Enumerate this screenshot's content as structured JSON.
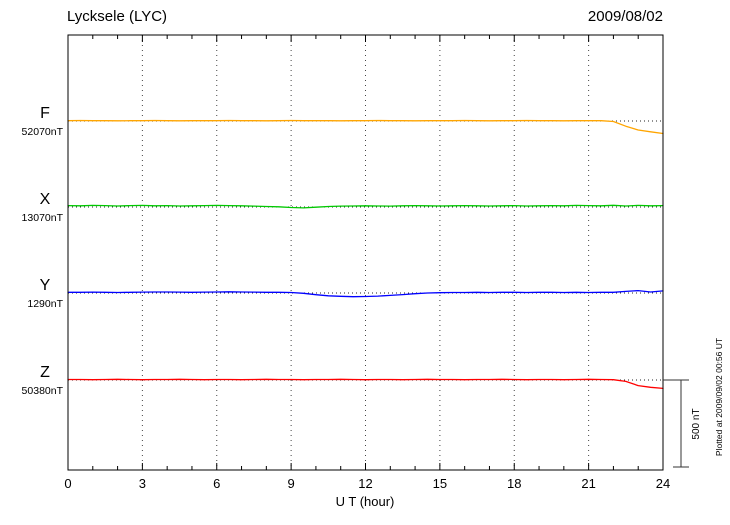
{
  "header": {
    "title": "Lycksele (LYC)",
    "date": "2009/08/02"
  },
  "scale_bar": {
    "label": "500 nT",
    "nT": 500
  },
  "plot_note": "Plotted at 2009/09/02 00:56 UT",
  "chart_data": {
    "type": "line",
    "title": "Lycksele (LYC)",
    "date": "2009/08/02",
    "xlabel": "U T (hour)",
    "x_range": [
      0,
      24
    ],
    "x_ticks": [
      0,
      3,
      6,
      9,
      12,
      15,
      18,
      21,
      24
    ],
    "x_step_hours": 0.5,
    "grid": "dotted vertical gridlines every 3 hours; dotted horizontal baseline for each trace",
    "scale_reference_nT": 500,
    "legend_position": "left margin, one colored label per trace",
    "series": [
      {
        "name": "F",
        "baseline_label": "52070nT",
        "baseline_nT": 52070,
        "color": "#FFA500",
        "offsets_nT": [
          2,
          3,
          2,
          2,
          1,
          2,
          2,
          3,
          2,
          1,
          2,
          2,
          2,
          3,
          2,
          2,
          1,
          2,
          3,
          2,
          2,
          2,
          1,
          2,
          2,
          3,
          2,
          2,
          1,
          2,
          2,
          2,
          3,
          2,
          1,
          2,
          2,
          3,
          2,
          2,
          1,
          2,
          2,
          2,
          -3,
          -30,
          -52,
          -62,
          -72
        ]
      },
      {
        "name": "X",
        "baseline_label": "13070nT",
        "baseline_nT": 13070,
        "color": "#00C800",
        "offsets_nT": [
          8,
          7,
          9,
          8,
          6,
          8,
          9,
          7,
          8,
          6,
          7,
          8,
          9,
          8,
          7,
          5,
          3,
          1,
          -3,
          -5,
          -1,
          3,
          5,
          6,
          7,
          6,
          5,
          7,
          8,
          7,
          6,
          7,
          8,
          7,
          6,
          7,
          8,
          6,
          7,
          8,
          7,
          9,
          8,
          7,
          10,
          6,
          9,
          7,
          8
        ]
      },
      {
        "name": "Y",
        "baseline_label": "1290nT",
        "baseline_nT": 1290,
        "color": "#0000FF",
        "offsets_nT": [
          4,
          4,
          5,
          4,
          3,
          4,
          5,
          6,
          6,
          5,
          4,
          5,
          6,
          7,
          6,
          5,
          4,
          4,
          3,
          -2,
          -10,
          -16,
          -19,
          -21,
          -20,
          -18,
          -14,
          -9,
          -4,
          0,
          2,
          3,
          3,
          4,
          3,
          4,
          4,
          3,
          4,
          4,
          3,
          4,
          3,
          4,
          4,
          9,
          14,
          6,
          12
        ]
      },
      {
        "name": "Z",
        "baseline_label": "50380nT",
        "baseline_nT": 50380,
        "color": "#FF0000",
        "offsets_nT": [
          3,
          3,
          2,
          3,
          4,
          3,
          2,
          3,
          3,
          4,
          3,
          2,
          3,
          3,
          2,
          3,
          4,
          3,
          3,
          2,
          3,
          3,
          4,
          3,
          2,
          3,
          3,
          2,
          3,
          4,
          3,
          3,
          2,
          3,
          3,
          4,
          3,
          2,
          3,
          3,
          2,
          3,
          4,
          3,
          2,
          -8,
          -32,
          -42,
          -48
        ]
      }
    ]
  }
}
